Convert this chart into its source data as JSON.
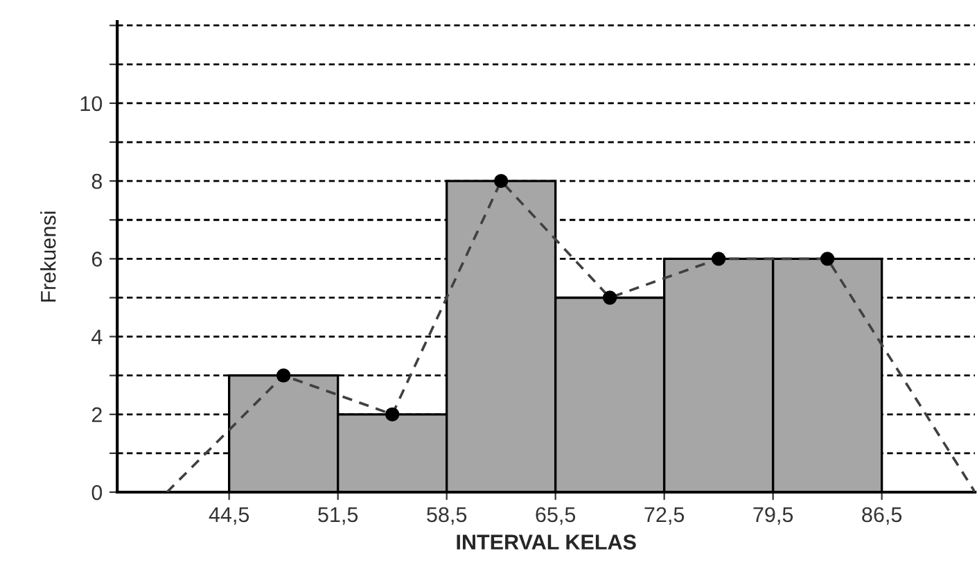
{
  "chart_data": {
    "type": "histogram",
    "xlabel": "INTERVAL KELAS",
    "ylabel": "Frekuensi",
    "bins": [
      44.5,
      51.5,
      58.5,
      65.5,
      72.5,
      79.5,
      86.5
    ],
    "values": [
      3,
      2,
      8,
      5,
      6,
      6
    ],
    "color": "#a6a6a6",
    "series": [
      {
        "type": "line",
        "x": [
          40.5,
          48,
          55,
          62,
          69,
          76,
          83,
          92.5
        ],
        "values": [
          0,
          3,
          2,
          8,
          5,
          6,
          6,
          0
        ],
        "color": "#404040",
        "line_style": "dashed",
        "marker": "none"
      },
      {
        "type": "scatter",
        "x": [
          48,
          55,
          62,
          69,
          76,
          83
        ],
        "values": [
          3,
          2,
          8,
          5,
          6,
          6
        ],
        "color": "#000000",
        "marker": "circle"
      }
    ],
    "xlim": [
      37.3,
      92.5
    ],
    "ylim": [
      0,
      12.1
    ],
    "xticks": [
      {
        "value": 44.5,
        "label": "44,5"
      },
      {
        "value": 51.5,
        "label": "51,5"
      },
      {
        "value": 58.5,
        "label": "58,5"
      },
      {
        "value": 65.5,
        "label": "65,5"
      },
      {
        "value": 72.5,
        "label": "72,5"
      },
      {
        "value": 79.5,
        "label": "79,5"
      },
      {
        "value": 86.5,
        "label": "86,5"
      }
    ],
    "yticks": [
      0,
      {
        "value": 1,
        "label": null
      },
      2,
      {
        "value": 3,
        "label": null
      },
      4,
      {
        "value": 5,
        "label": null
      },
      6,
      {
        "value": 7,
        "label": null
      },
      8,
      {
        "value": 9,
        "label": null
      },
      10,
      {
        "value": 11,
        "label": null
      },
      {
        "value": 12,
        "label": null
      }
    ],
    "grid": "y",
    "legend": false
  }
}
